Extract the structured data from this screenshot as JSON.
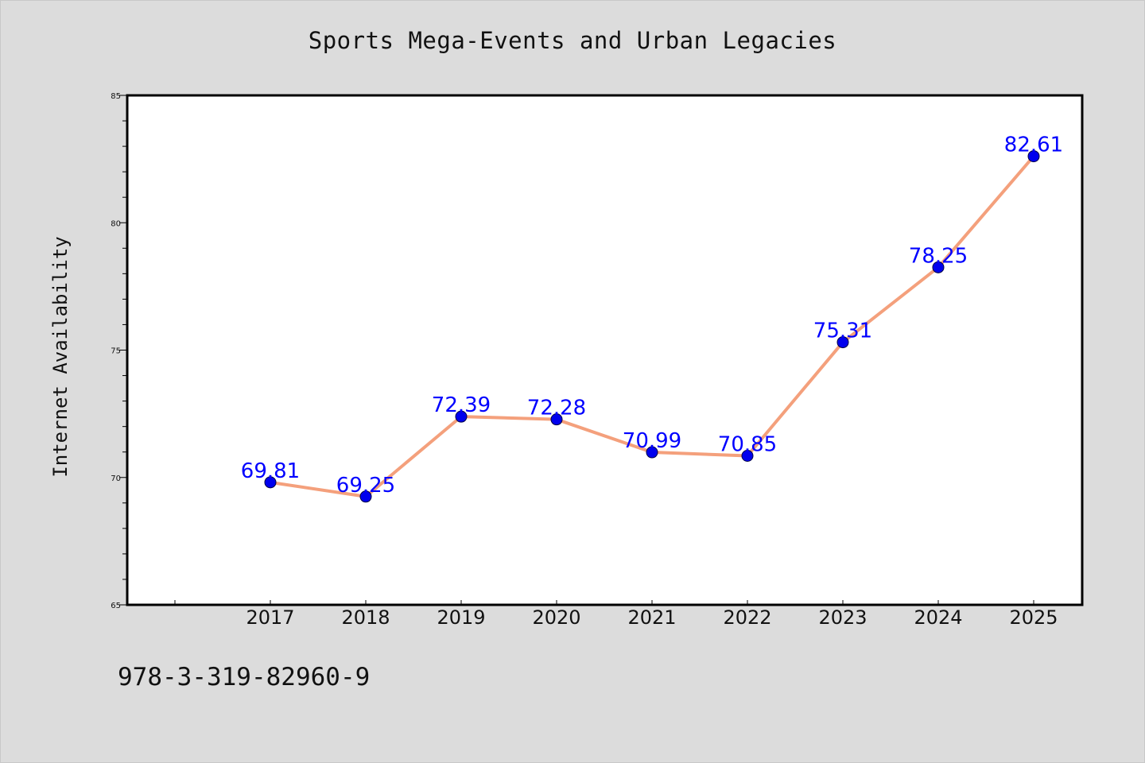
{
  "chart_data": {
    "type": "line",
    "title": "Sports Mega-Events and Urban Legacies",
    "xlabel": "",
    "ylabel": "Internet Availability",
    "categories": [
      "2017",
      "2018",
      "2019",
      "2020",
      "2021",
      "2022",
      "2023",
      "2024",
      "2025"
    ],
    "series": [
      {
        "values": [
          69.81,
          69.25,
          72.39,
          72.28,
          70.99,
          70.85,
          75.31,
          78.25,
          82.61
        ],
        "labels": [
          "69.81",
          "69.25",
          "72.39",
          "72.28",
          "70.99",
          "70.85",
          "75.31",
          "78.25",
          "82.61"
        ]
      }
    ],
    "ylim": [
      65,
      85
    ],
    "yticks": [
      "65",
      "70",
      "75",
      "80",
      "85"
    ],
    "grid": false,
    "legend": "none",
    "line_color": "#f4a07c",
    "marker_color": "#0000ee",
    "label_color": "#0000ff"
  },
  "footer": {
    "text": "978-3-319-82960-9"
  }
}
